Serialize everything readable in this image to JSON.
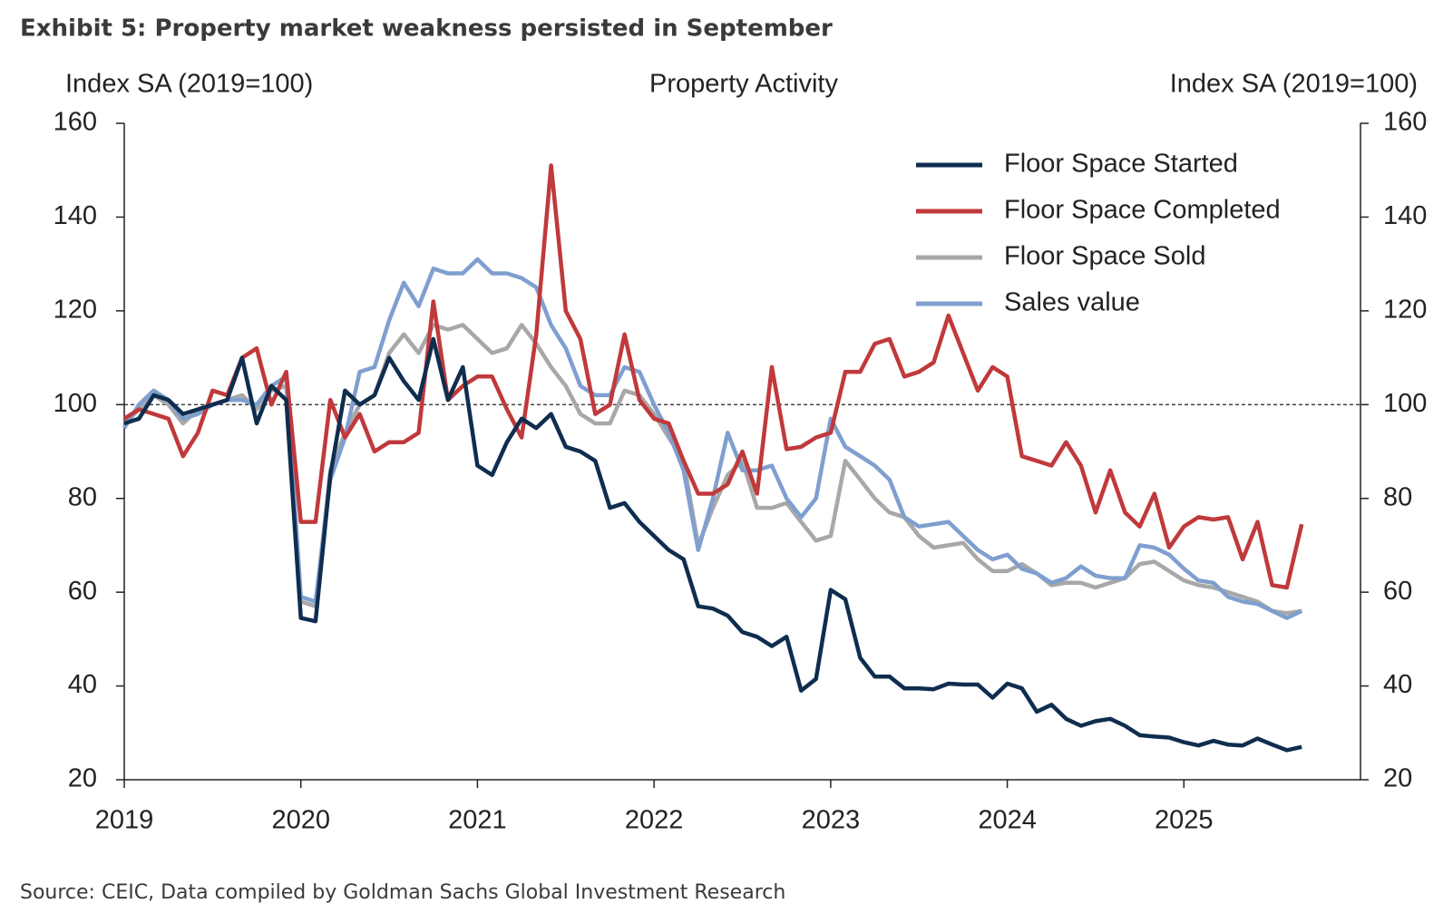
{
  "chart_data": {
    "type": "line",
    "title": "Exhibit 5: Property market weakness persisted in September",
    "subtitle": "Property Activity",
    "ylabel": "Index SA (2019=100)",
    "y2label": "Index SA (2019=100)",
    "source": "Source: CEIC, Data compiled by Goldman Sachs Global Investment Research",
    "x": [
      2019,
      2019.083,
      2019.167,
      2019.25,
      2019.333,
      2019.417,
      2019.5,
      2019.583,
      2019.667,
      2019.75,
      2019.833,
      2019.917,
      2020,
      2020.083,
      2020.167,
      2020.25,
      2020.333,
      2020.417,
      2020.5,
      2020.583,
      2020.667,
      2020.75,
      2020.833,
      2020.917,
      2021,
      2021.083,
      2021.167,
      2021.25,
      2021.333,
      2021.417,
      2021.5,
      2021.583,
      2021.667,
      2021.75,
      2021.833,
      2021.917,
      2022,
      2022.083,
      2022.167,
      2022.25,
      2022.333,
      2022.417,
      2022.5,
      2022.583,
      2022.667,
      2022.75,
      2022.833,
      2022.917,
      2023,
      2023.083,
      2023.167,
      2023.25,
      2023.333,
      2023.417,
      2023.5,
      2023.583,
      2023.667,
      2023.75,
      2023.833,
      2023.917,
      2024,
      2024.083,
      2024.167,
      2024.25,
      2024.333,
      2024.417,
      2024.5,
      2024.583,
      2024.667,
      2024.75,
      2024.833,
      2024.917,
      2025,
      2025.083,
      2025.167,
      2025.25,
      2025.333,
      2025.417,
      2025.5,
      2025.583,
      2025.667
    ],
    "xlim": [
      2019,
      2026
    ],
    "xticks": [
      2019,
      2020,
      2021,
      2022,
      2023,
      2024,
      2025
    ],
    "ylim": [
      20,
      160
    ],
    "yticks": [
      20,
      40,
      60,
      80,
      100,
      120,
      140,
      160
    ],
    "y2lim": [
      20,
      160
    ],
    "y2ticks": [
      20,
      40,
      60,
      80,
      100,
      120,
      140,
      160
    ],
    "reference_line": 100,
    "legend": "upper right",
    "series": [
      {
        "name": "Floor Space Started",
        "color": "#0f2d4f",
        "values": [
          96,
          97,
          102,
          101,
          98,
          99,
          100,
          101,
          110,
          96,
          104,
          101,
          54.5,
          53.8,
          85,
          103,
          100,
          102,
          110,
          105,
          101,
          114,
          101,
          108,
          87,
          85,
          92,
          97,
          95,
          98,
          91,
          90,
          88,
          78,
          79,
          75,
          72,
          69,
          67,
          57,
          56.5,
          55,
          51.5,
          50.5,
          48.5,
          50.5,
          39,
          41.5,
          60.5,
          58.5,
          46,
          42,
          42,
          39.5,
          39.5,
          39.3,
          40.5,
          40.3,
          40.3,
          37.5,
          40.5,
          39.5,
          34.5,
          36,
          33,
          31.5,
          32.5,
          33,
          31.5,
          29.5,
          29.2,
          29,
          28,
          27.3,
          28.3,
          27.5,
          27.3,
          28.8,
          27.5,
          26.3,
          27
        ]
      },
      {
        "name": "Floor Space Completed",
        "color": "#c0393b",
        "values": [
          97,
          99,
          98,
          97,
          89,
          94,
          103,
          102,
          110,
          112,
          100,
          107,
          75,
          75,
          101,
          93,
          98,
          90,
          92,
          92,
          94,
          122,
          101,
          104,
          106,
          106,
          99,
          93,
          115,
          151,
          120,
          114,
          98,
          100,
          115,
          101,
          97,
          96,
          88,
          81,
          81,
          83,
          90,
          81,
          108,
          90.5,
          91,
          93,
          94,
          107,
          107,
          113,
          114,
          106,
          107,
          109,
          119,
          111,
          103,
          108,
          106,
          89,
          88,
          87,
          92,
          87,
          77,
          86,
          77,
          74,
          81,
          69.5,
          74,
          76,
          75.5,
          76,
          67,
          75,
          61.5,
          61,
          74.5
        ]
      },
      {
        "name": "Floor Space Sold",
        "color": "#a8a8a8",
        "values": [
          96,
          99,
          102,
          100,
          96,
          99,
          100,
          101,
          102,
          99,
          103,
          104,
          58,
          57,
          86,
          94,
          100,
          102,
          111,
          115,
          111,
          117,
          116,
          117,
          114,
          111,
          112,
          117,
          113,
          108,
          104,
          98,
          96,
          96,
          103,
          102,
          98,
          93,
          88,
          70,
          78,
          85,
          88,
          78,
          78,
          79,
          75,
          71,
          72,
          88,
          84,
          80,
          77,
          76,
          72,
          69.5,
          70,
          70.5,
          67,
          64.5,
          64.5,
          66,
          64,
          61.5,
          62,
          62,
          61,
          62,
          63,
          66,
          66.5,
          64.5,
          62.5,
          61.5,
          61,
          60,
          59,
          58,
          56,
          55.5,
          56
        ]
      },
      {
        "name": "Sales value",
        "color": "#7f9fcf",
        "values": [
          95,
          100,
          103,
          101,
          97,
          98,
          100,
          101,
          101,
          100,
          104,
          106,
          59,
          58,
          84,
          93,
          107,
          108,
          118,
          126,
          121,
          129,
          128,
          128,
          131,
          128,
          128,
          127,
          125,
          117,
          112,
          104,
          102,
          102,
          108,
          107,
          100,
          94,
          86,
          69,
          80,
          94,
          86,
          86,
          87,
          80,
          76,
          80,
          97,
          91,
          89,
          87,
          84,
          76,
          74,
          74.5,
          75,
          72,
          69,
          67,
          68,
          65,
          64,
          62,
          63,
          65.5,
          63.5,
          63,
          63,
          70,
          69.5,
          68,
          65,
          62.5,
          62,
          59,
          58,
          57.5,
          56,
          54.5,
          56
        ]
      }
    ]
  }
}
